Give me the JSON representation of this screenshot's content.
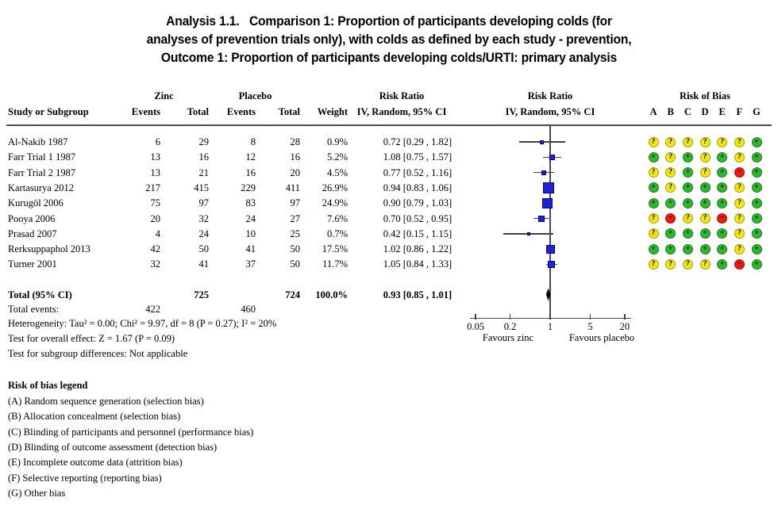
{
  "title": {
    "lines": [
      "Analysis 1.1.   Comparison 1: Proportion of participants developing colds (for",
      "analyses of prevention trials only), with colds as defined by each study - prevention,",
      "Outcome 1: Proportion of participants developing colds/URTI: primary analysis"
    ]
  },
  "table_header": {
    "study": "Study or Subgroup",
    "group_zinc": "Zinc",
    "group_placebo": "Placebo",
    "events": "Events",
    "total": "Total",
    "weight": "Weight",
    "risk_ratio": "Risk Ratio",
    "method": "IV, Random, 95% CI",
    "risk_of_bias": "Risk of Bias",
    "bias_columns": [
      "A",
      "B",
      "C",
      "D",
      "E",
      "F",
      "G"
    ]
  },
  "chart_data": {
    "type": "scatter",
    "subtype": "forest_plot",
    "x_scale": "log",
    "effect_measure": "Risk Ratio",
    "axis": {
      "ticks": [
        0.05,
        0.2,
        1,
        5,
        20
      ],
      "null_line": 1,
      "label_left": "Favours zinc",
      "label_right": "Favours placebo"
    },
    "studies": [
      {
        "name": "Al-Nakib 1987",
        "zinc_events": 6,
        "zinc_total": 29,
        "placebo_events": 8,
        "placebo_total": 28,
        "weight": "0.9%",
        "rr": 0.72,
        "ci_low": 0.29,
        "ci_high": 1.82,
        "rr_text": "0.72 [0.29 , 1.82]",
        "marker_size": 5,
        "bias": [
          "?",
          "?",
          "?",
          "?",
          "?",
          "?",
          "+"
        ]
      },
      {
        "name": "Farr Trial 1 1987",
        "zinc_events": 13,
        "zinc_total": 16,
        "placebo_events": 12,
        "placebo_total": 16,
        "weight": "5.2%",
        "rr": 1.08,
        "ci_low": 0.75,
        "ci_high": 1.57,
        "rr_text": "1.08 [0.75 , 1.57]",
        "marker_size": 7,
        "bias": [
          "+",
          "?",
          "+",
          "?",
          "+",
          "?",
          "+"
        ]
      },
      {
        "name": "Farr Trial 2 1987",
        "zinc_events": 13,
        "zinc_total": 21,
        "placebo_events": 16,
        "placebo_total": 20,
        "weight": "4.5%",
        "rr": 0.77,
        "ci_low": 0.52,
        "ci_high": 1.16,
        "rr_text": "0.77 [0.52 , 1.16]",
        "marker_size": 6,
        "bias": [
          "?",
          "?",
          "+",
          "?",
          "+",
          "−",
          "+"
        ]
      },
      {
        "name": "Kartasurya 2012",
        "zinc_events": 217,
        "zinc_total": 415,
        "placebo_events": 229,
        "placebo_total": 411,
        "weight": "26.9%",
        "rr": 0.94,
        "ci_low": 0.83,
        "ci_high": 1.06,
        "rr_text": "0.94 [0.83 , 1.06]",
        "marker_size": 14,
        "bias": [
          "+",
          "?",
          "+",
          "+",
          "+",
          "?",
          "+"
        ]
      },
      {
        "name": "Kurugöl 2006",
        "zinc_events": 75,
        "zinc_total": 97,
        "placebo_events": 83,
        "placebo_total": 97,
        "weight": "24.9%",
        "rr": 0.9,
        "ci_low": 0.79,
        "ci_high": 1.03,
        "rr_text": "0.90 [0.79 , 1.03]",
        "marker_size": 13,
        "bias": [
          "+",
          "+",
          "+",
          "+",
          "+",
          "?",
          "+"
        ]
      },
      {
        "name": "Pooya 2006",
        "zinc_events": 20,
        "zinc_total": 32,
        "placebo_events": 24,
        "placebo_total": 27,
        "weight": "7.6%",
        "rr": 0.7,
        "ci_low": 0.52,
        "ci_high": 0.95,
        "rr_text": "0.70 [0.52 , 0.95]",
        "marker_size": 8,
        "bias": [
          "?",
          "−",
          "?",
          "?",
          "−",
          "?",
          "+"
        ]
      },
      {
        "name": "Prasad 2007",
        "zinc_events": 4,
        "zinc_total": 24,
        "placebo_events": 10,
        "placebo_total": 25,
        "weight": "0.7%",
        "rr": 0.42,
        "ci_low": 0.15,
        "ci_high": 1.15,
        "rr_text": "0.42 [0.15 , 1.15]",
        "marker_size": 4,
        "bias": [
          "?",
          "+",
          "+",
          "+",
          "+",
          "?",
          "+"
        ]
      },
      {
        "name": "Rerksuppaphol 2013",
        "zinc_events": 42,
        "zinc_total": 50,
        "placebo_events": 41,
        "placebo_total": 50,
        "weight": "17.5%",
        "rr": 1.02,
        "ci_low": 0.86,
        "ci_high": 1.22,
        "rr_text": "1.02 [0.86 , 1.22]",
        "marker_size": 11,
        "bias": [
          "+",
          "+",
          "+",
          "+",
          "+",
          "?",
          "+"
        ]
      },
      {
        "name": "Turner 2001",
        "zinc_events": 32,
        "zinc_total": 41,
        "placebo_events": 37,
        "placebo_total": 50,
        "weight": "11.7%",
        "rr": 1.05,
        "ci_low": 0.84,
        "ci_high": 1.33,
        "rr_text": "1.05 [0.84 , 1.33]",
        "marker_size": 9,
        "bias": [
          "?",
          "?",
          "?",
          "?",
          "+",
          "−",
          "+"
        ]
      }
    ],
    "total": {
      "label": "Total (95% CI)",
      "zinc_total": 725,
      "placebo_total": 724,
      "weight": "100.0%",
      "rr": 0.93,
      "ci_low": 0.85,
      "ci_high": 1.01,
      "rr_text": "0.93 [0.85 , 1.01]"
    },
    "total_events": {
      "label": "Total events:",
      "zinc": 422,
      "placebo": 460
    }
  },
  "stats": {
    "heterogeneity": "Heterogeneity: Tau² = 0.00; Chi² = 9.97, df = 8 (P = 0.27); I² = 20%",
    "overall_effect": "Test for overall effect: Z = 1.67 (P = 0.09)",
    "subgroup": "Test for subgroup differences: Not applicable"
  },
  "legend": {
    "heading": "Risk of bias legend",
    "items": [
      "(A) Random sequence generation (selection bias)",
      "(B) Allocation concealment (selection bias)",
      "(C) Blinding of participants and personnel (performance bias)",
      "(D) Blinding of outcome assessment (detection bias)",
      "(E) Incomplete outcome data (attrition bias)",
      "(F) Selective reporting (reporting bias)",
      "(G) Other bias"
    ]
  },
  "colors": {
    "low_risk": "#2fb52f",
    "unclear_risk": "#f0e712",
    "high_risk": "#e51c13",
    "marker_blue": "#2323cd",
    "marker_border": "#000080",
    "line": "#404040",
    "diamond": "#000000"
  },
  "bias_symbols": {
    "low": "+",
    "unclear": "?",
    "high": "−"
  }
}
